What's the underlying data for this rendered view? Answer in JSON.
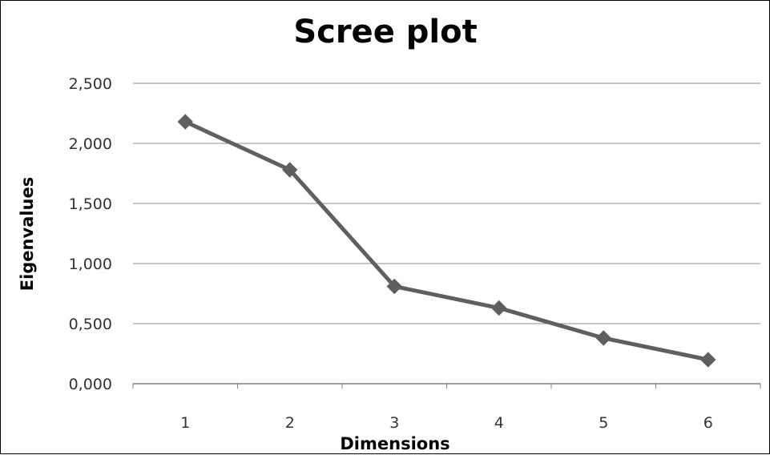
{
  "chart_data": {
    "type": "line",
    "title": "Scree plot",
    "xlabel": "Dimensions",
    "ylabel": "Eigenvalues",
    "x": [
      1,
      2,
      3,
      4,
      5,
      6
    ],
    "x_tick_labels": [
      "1",
      "2",
      "3",
      "4",
      "5",
      "6"
    ],
    "y_tick_values": [
      0,
      0.5,
      1,
      1.5,
      2,
      2.5
    ],
    "y_tick_labels": [
      "0,000",
      "0,500",
      "1,000",
      "1,500",
      "2,000",
      "2,500"
    ],
    "ylim": [
      0,
      2.5
    ],
    "grid": true,
    "legend": "none",
    "series": [
      {
        "values": [
          2.18,
          1.78,
          0.81,
          0.63,
          0.38,
          0.2
        ],
        "color": "#5f5f5f",
        "marker": "diamond"
      }
    ]
  }
}
